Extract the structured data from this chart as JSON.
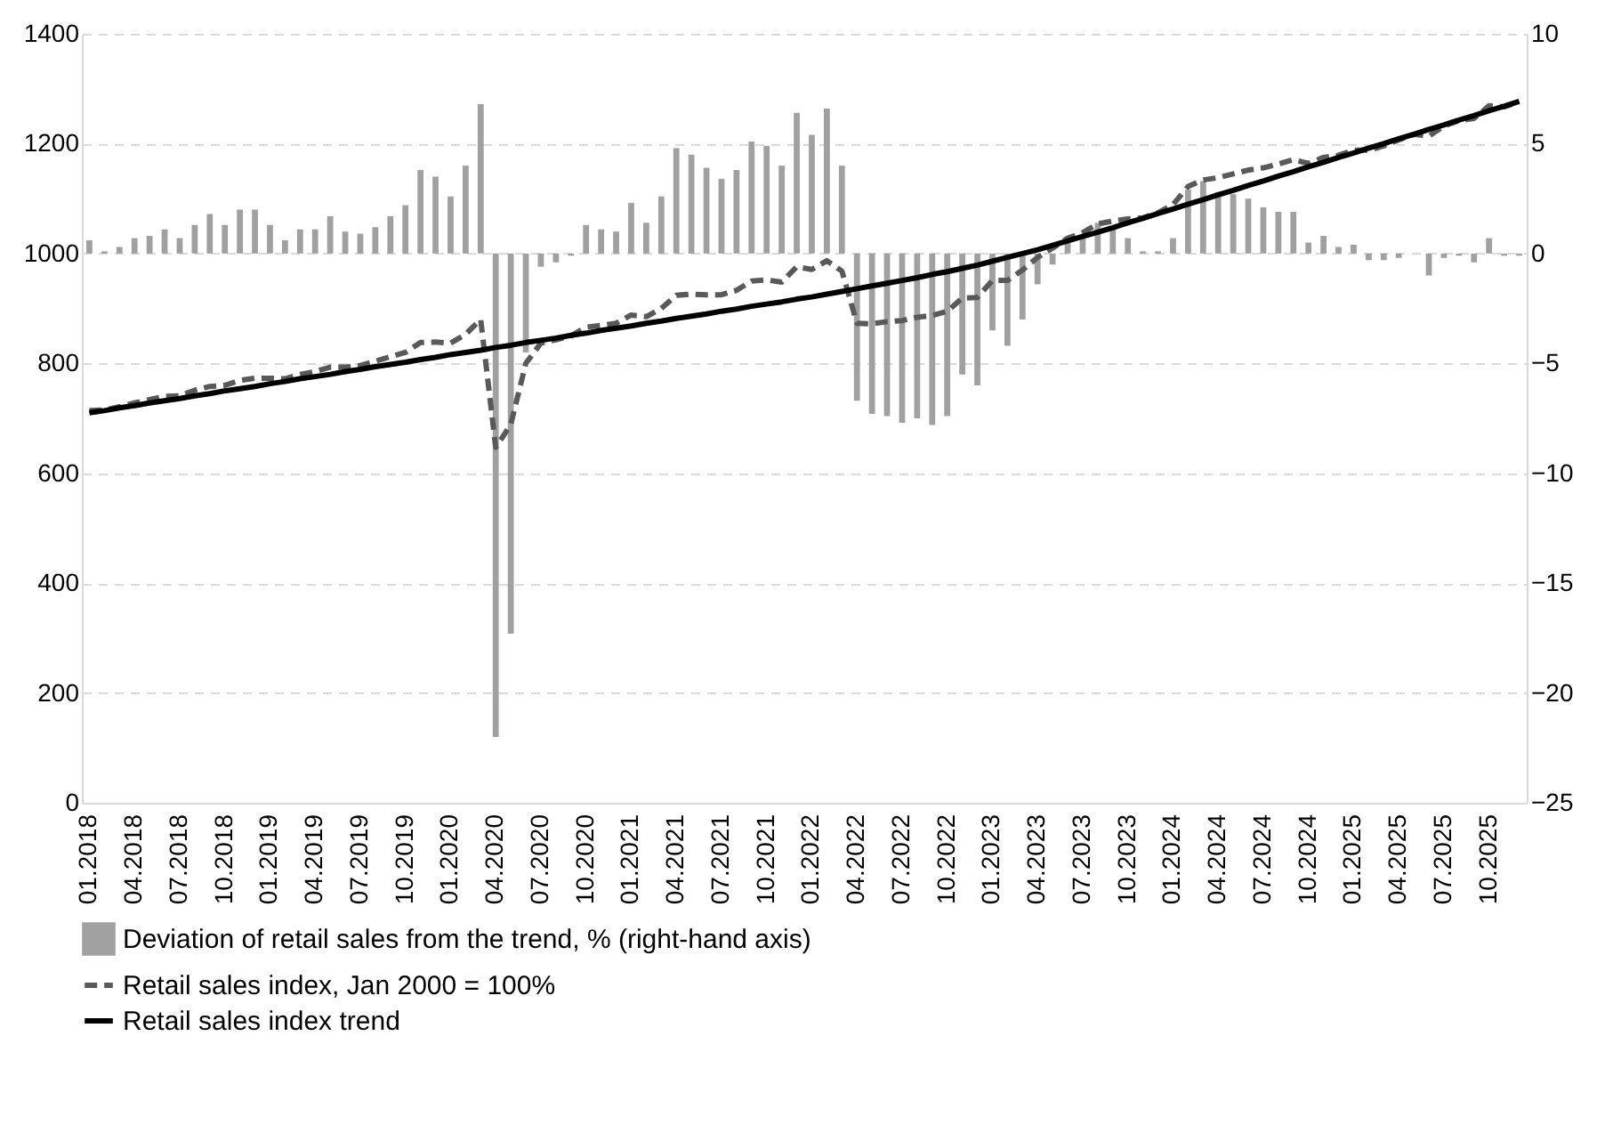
{
  "chart_data": {
    "type": "bar",
    "categories": [
      "01.2018",
      null,
      null,
      "04.2018",
      null,
      null,
      "07.2018",
      null,
      null,
      "10.2018",
      null,
      null,
      "01.2019",
      null,
      null,
      "04.2019",
      null,
      null,
      "07.2019",
      null,
      null,
      "10.2019",
      null,
      null,
      "01.2020",
      null,
      null,
      "04.2020",
      null,
      null,
      "07.2020",
      null,
      null,
      "10.2020",
      null,
      null,
      "01.2021",
      null,
      null,
      "04.2021",
      null,
      null,
      "07.2021",
      null,
      null,
      "10.2021",
      null,
      null,
      "01.2022",
      null,
      null,
      "04.2022",
      null,
      null,
      "07.2022",
      null,
      null,
      "10.2022",
      null,
      null,
      "01.2023",
      null,
      null,
      "04.2023",
      null,
      null,
      "07.2023",
      null,
      null,
      "10.2023",
      null,
      null,
      "01.2024",
      null,
      null,
      "04.2024",
      null,
      null,
      "07.2024",
      null,
      null,
      "10.2024",
      null,
      null,
      "01.2025",
      null,
      null,
      "04.2025",
      null,
      null,
      "07.2025",
      null,
      null,
      "10.2025",
      null,
      null
    ],
    "series": [
      {
        "name": "Deviation of retail sales from the trend, % (right-hand axis)",
        "color": "#a0a0a0",
        "axis": "y2",
        "values": [
          0.6,
          0.1,
          0.3,
          0.7,
          0.8,
          1.1,
          0.7,
          1.3,
          1.8,
          1.3,
          2.0,
          2.0,
          1.3,
          0.6,
          1.1,
          1.1,
          1.7,
          1.0,
          0.9,
          1.2,
          1.7,
          2.2,
          3.8,
          3.5,
          2.6,
          4.0,
          6.8,
          -22.0,
          -17.3,
          -4.5,
          -0.6,
          -0.4,
          -0.1,
          1.3,
          1.1,
          1.0,
          2.3,
          1.4,
          2.6,
          4.8,
          4.5,
          3.9,
          3.4,
          3.8,
          5.1,
          4.9,
          4.0,
          6.4,
          5.4,
          6.6,
          4.0,
          -6.7,
          -7.3,
          -7.4,
          -7.7,
          -7.5,
          -7.8,
          -7.4,
          -5.5,
          -6.0,
          -3.5,
          -4.2,
          -3.0,
          -1.4,
          -0.5,
          0.5,
          0.7,
          1.4,
          1.1,
          0.7,
          0.1,
          0.1,
          0.7,
          2.9,
          3.3,
          2.8,
          2.7,
          2.5,
          2.1,
          1.9,
          1.9,
          0.5,
          0.8,
          0.3,
          0.4,
          -0.3,
          -0.3,
          -0.2,
          0.0,
          -1.0,
          -0.2,
          -0.1,
          -0.4,
          0.7,
          -0.1,
          -0.1
        ]
      },
      {
        "name": "Retail sales index, Jan 2000 = 100%",
        "color": "#595959",
        "type": "line",
        "line_style": "dashed",
        "values": [
          714,
          715,
          721,
          728,
          734,
          740,
          741,
          751,
          758,
          760,
          769,
          773,
          773,
          772,
          780,
          785,
          793,
          793,
          796,
          804,
          812,
          820,
          838,
          839,
          837,
          853,
          880,
          647,
          689,
          800,
          837,
          843,
          850,
          866,
          869,
          873,
          888,
          885,
          900,
          924,
          926,
          925,
          925,
          933,
          950,
          952,
          948,
          976,
          971,
          987,
          968,
          873,
          872,
          876,
          878,
          884,
          887,
          895,
          919,
          920,
          951,
          951,
          970,
          993,
          1010,
          1028,
          1038,
          1054,
          1059,
          1063,
          1065,
          1074,
          1089,
          1122,
          1134,
          1138,
          1145,
          1152,
          1156,
          1163,
          1171,
          1164,
          1175,
          1179,
          1188,
          1188,
          1196,
          1207,
          1217,
          1214,
          1232,
          1242,
          1246,
          1269,
          1267,
          1276
        ]
      },
      {
        "name": "Retail sales index trend",
        "color": "#000000",
        "type": "line",
        "line_style": "solid",
        "values": [
          710,
          714,
          719,
          723,
          728,
          732,
          736,
          741,
          745,
          750,
          754,
          758,
          763,
          767,
          772,
          776,
          780,
          785,
          789,
          794,
          798,
          802,
          807,
          811,
          816,
          820,
          824,
          829,
          833,
          838,
          842,
          846,
          851,
          855,
          860,
          864,
          868,
          873,
          877,
          882,
          886,
          890,
          895,
          899,
          904,
          908,
          912,
          917,
          921,
          926,
          931,
          936,
          941,
          946,
          951,
          956,
          962,
          967,
          973,
          979,
          986,
          993,
          1000,
          1007,
          1015,
          1023,
          1031,
          1039,
          1047,
          1056,
          1064,
          1073,
          1081,
          1090,
          1098,
          1107,
          1115,
          1124,
          1132,
          1141,
          1149,
          1158,
          1166,
          1175,
          1183,
          1192,
          1200,
          1209,
          1217,
          1226,
          1234,
          1243,
          1251,
          1260,
          1268,
          1277
        ]
      }
    ],
    "ylim": [
      0,
      1400
    ],
    "yticks": [
      0,
      200,
      400,
      600,
      800,
      1000,
      1200,
      1400
    ],
    "y2lim": [
      -25,
      10
    ],
    "y2ticks": [
      -25,
      -20,
      -15,
      -10,
      -5,
      0,
      5,
      10
    ],
    "grid": "y",
    "legend": "bottom",
    "marker": "none"
  }
}
